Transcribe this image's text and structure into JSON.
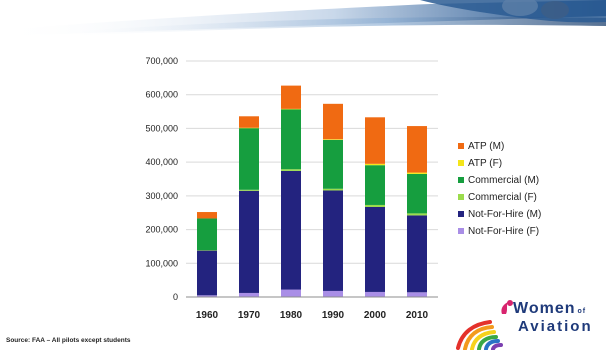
{
  "chart_data": {
    "type": "bar",
    "stacked": true,
    "categories": [
      "1960",
      "1970",
      "1980",
      "1990",
      "2000",
      "2010"
    ],
    "ylim": [
      0,
      700000
    ],
    "yticks": [
      "0",
      "100,000",
      "200,000",
      "300,000",
      "400,000",
      "500,000",
      "600,000",
      "700,000"
    ],
    "grid": true,
    "legend_position": "right",
    "series": [
      {
        "name": "Not-For-Hire (F)",
        "color": "#a98ee6",
        "values": [
          5000,
          12000,
          22000,
          18000,
          15000,
          14000
        ]
      },
      {
        "name": "Not-For-Hire (M)",
        "color": "#23237f",
        "values": [
          133000,
          303000,
          352000,
          298000,
          252000,
          228000
        ]
      },
      {
        "name": "Commercial (F)",
        "color": "#9bdc4c",
        "values": [
          1000,
          3000,
          5000,
          5000,
          6000,
          6000
        ]
      },
      {
        "name": "Commercial (M)",
        "color": "#169e3f",
        "values": [
          94000,
          183000,
          178000,
          145000,
          118000,
          117000
        ]
      },
      {
        "name": "ATP (F)",
        "color": "#f4e51a",
        "values": [
          0,
          1000,
          1000,
          2000,
          4000,
          4000
        ]
      },
      {
        "name": "ATP (M)",
        "color": "#f06a12",
        "values": [
          19000,
          34000,
          69000,
          105000,
          138000,
          138000
        ]
      }
    ]
  },
  "source_note": "Source: FAA – All pilots except students",
  "logo": {
    "line1": "Women",
    "of": "of",
    "line2": "Aviation"
  }
}
